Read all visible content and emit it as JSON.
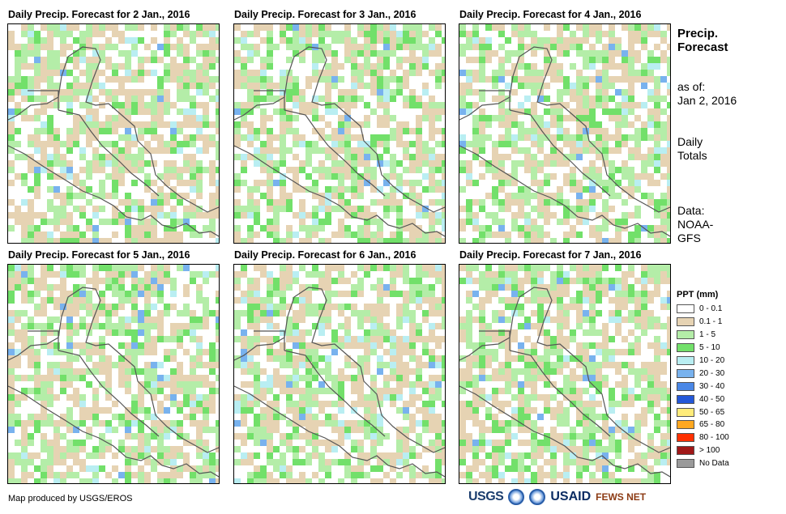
{
  "panels": [
    {
      "title": "Daily Precip. Forecast for 2 Jan., 2016"
    },
    {
      "title": "Daily Precip. Forecast for 3 Jan., 2016"
    },
    {
      "title": "Daily Precip. Forecast for 4 Jan., 2016"
    },
    {
      "title": "Daily Precip. Forecast for 5 Jan., 2016"
    },
    {
      "title": "Daily Precip. Forecast for 6 Jan., 2016"
    },
    {
      "title": "Daily Precip. Forecast for 7 Jan., 2016"
    }
  ],
  "side": {
    "title_line1": "Precip.",
    "title_line2": "Forecast",
    "asof_line1": "as of:",
    "asof_line2": "Jan 2, 2016",
    "totals_line1": "Daily",
    "totals_line2": "Totals",
    "data_line1": "Data:",
    "data_line2": "NOAA-",
    "data_line3": "GFS"
  },
  "legend": {
    "title": "PPT (mm)",
    "items": [
      {
        "label": "0 - 0.1",
        "color": "#ffffff"
      },
      {
        "label": "0.1 - 1",
        "color": "#e6d3b3"
      },
      {
        "label": "1 - 5",
        "color": "#b4eda8"
      },
      {
        "label": "5 - 10",
        "color": "#72e06a"
      },
      {
        "label": "10 - 20",
        "color": "#b9eef2"
      },
      {
        "label": "20 - 30",
        "color": "#78b2ee"
      },
      {
        "label": "30 - 40",
        "color": "#4a87e6"
      },
      {
        "label": "40 - 50",
        "color": "#2458d8"
      },
      {
        "label": "50 - 65",
        "color": "#ffec7a"
      },
      {
        "label": "65 - 80",
        "color": "#ffa820"
      },
      {
        "label": "80 - 100",
        "color": "#ff3000"
      },
      {
        "label": "> 100",
        "color": "#a01818"
      },
      {
        "label": "No Data",
        "color": "#9a9a9a"
      }
    ]
  },
  "credit": "Map produced by USGS/EROS",
  "logos": {
    "usgs": "USGS",
    "usaid": "USAID",
    "fews": "FEWS NET"
  }
}
